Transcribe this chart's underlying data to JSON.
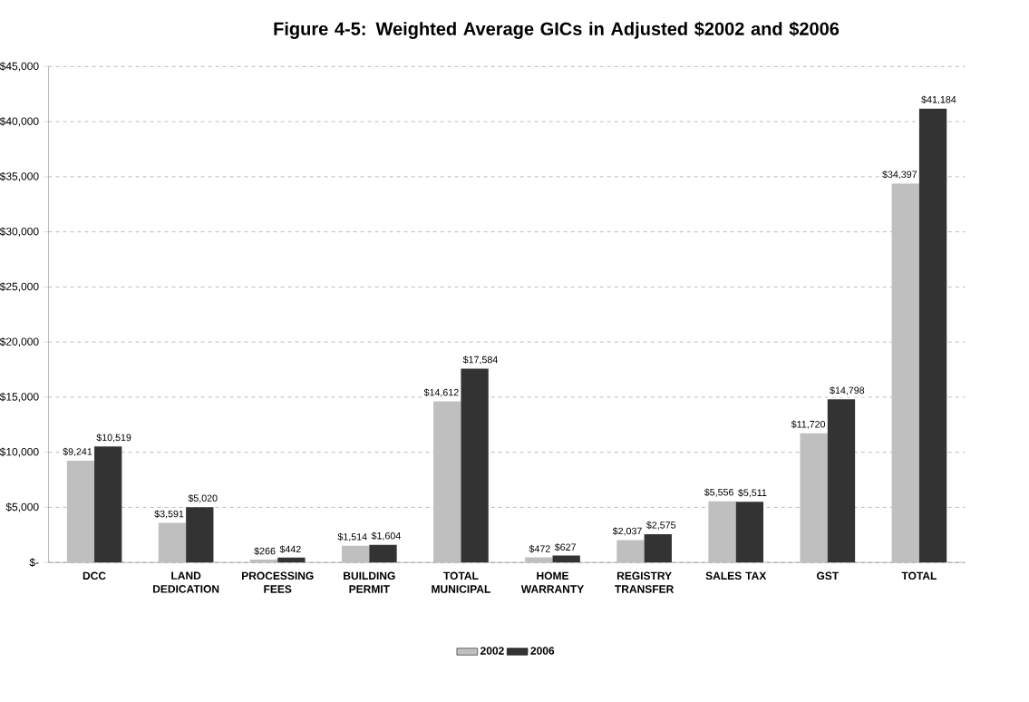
{
  "chart_data": {
    "type": "bar",
    "title": "Figure 4-5:  Weighted Average GICs in Adjusted $2002 and $2006",
    "categories": [
      "DCC",
      "LAND DEDICATION",
      "PROCESSING FEES",
      "BUILDING PERMIT",
      "TOTAL MUNICIPAL",
      "HOME WARRANTY",
      "REGISTRY TRANSFER",
      "SALES TAX",
      "GST",
      "TOTAL"
    ],
    "series": [
      {
        "name": "2002",
        "color": "#bfbfbf",
        "values": [
          9241,
          3591,
          266,
          1514,
          14612,
          472,
          2037,
          5556,
          11720,
          34397
        ],
        "value_labels": [
          "$9,241",
          "$3,591",
          "$266",
          "$1,514",
          "$14,612",
          "$472",
          "$2,037",
          "$5,556",
          "$11,720",
          "$34,397"
        ]
      },
      {
        "name": "2006",
        "color": "#333333",
        "values": [
          10519,
          5020,
          442,
          1604,
          17584,
          627,
          2575,
          5511,
          14798,
          41184
        ],
        "value_labels": [
          "$10,519",
          "$5,020",
          "$442",
          "$1,604",
          "$17,584",
          "$627",
          "$2,575",
          "$5,511",
          "$14,798",
          "$41,184"
        ]
      }
    ],
    "ylim": [
      0,
      45000
    ],
    "yticks": [
      {
        "value": 0,
        "label": "$-"
      },
      {
        "value": 5000,
        "label": "$5,000"
      },
      {
        "value": 10000,
        "label": "$10,000"
      },
      {
        "value": 15000,
        "label": "$15,000"
      },
      {
        "value": 20000,
        "label": "$20,000"
      },
      {
        "value": 25000,
        "label": "$25,000"
      },
      {
        "value": 30000,
        "label": "$30,000"
      },
      {
        "value": 35000,
        "label": "$35,000"
      },
      {
        "value": 40000,
        "label": "$40,000"
      },
      {
        "value": 45000,
        "label": "$45,000"
      }
    ],
    "grid": "y",
    "legend": "bottom"
  }
}
